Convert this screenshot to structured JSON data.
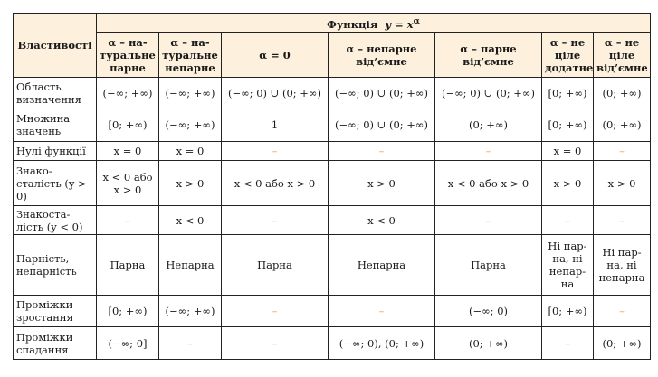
{
  "header": {
    "properties": "Властивості",
    "function": "Функція  y = x^α",
    "columns": [
      "α – на-туральне парне",
      "α – на-туральне непарне",
      "α = 0",
      "α – непарне від’ємне",
      "α – парне від’ємне",
      "α – не ціле додатне",
      "α – не ціле від’ємне"
    ]
  },
  "rows": [
    {
      "property": "Область визначення",
      "values": [
        "(−∞; +∞)",
        "(−∞; +∞)",
        "(−∞; 0) ∪ (0; +∞)",
        "(−∞; 0) ∪ (0; +∞)",
        "(−∞; 0) ∪ (0; +∞)",
        "[0; +∞)",
        "(0; +∞)"
      ]
    },
    {
      "property": "Множина значень",
      "values": [
        "[0; +∞)",
        "(−∞; +∞)",
        "1",
        "(−∞; 0) ∪ (0; +∞)",
        "(0; +∞)",
        "[0; +∞)",
        "(0; +∞)"
      ]
    },
    {
      "property": "Нулі функції",
      "values": [
        "x = 0",
        "x = 0",
        "–",
        "–",
        "–",
        "x = 0",
        "–"
      ]
    },
    {
      "property": "Знако-сталість (y > 0)",
      "values": [
        "x < 0 або x > 0",
        "x > 0",
        "x < 0 або x > 0",
        "x > 0",
        "x < 0 або x > 0",
        "x > 0",
        "x > 0"
      ]
    },
    {
      "property": "Знакоста-лість (y < 0)",
      "values": [
        "–",
        "x < 0",
        "–",
        "x < 0",
        "–",
        "–",
        "–"
      ]
    },
    {
      "property": "Парність, непарність",
      "values": [
        "Парна",
        "Непарна",
        "Парна",
        "Непарна",
        "Парна",
        "Ні пар-на, ні непар-на",
        "Ні пар-на, ні непарна"
      ]
    },
    {
      "property": "Проміжки зростання",
      "values": [
        "[0; +∞)",
        "(−∞; +∞)",
        "–",
        "–",
        "(−∞; 0)",
        "[0; +∞)",
        "–"
      ]
    },
    {
      "property": "Проміжки спадання",
      "values": [
        "(−∞; 0]",
        "–",
        "–",
        "(−∞; 0), (0; +∞)",
        "(0; +∞)",
        "–",
        "(0; +∞)"
      ]
    }
  ],
  "colors": {
    "header_bg": "#fdf0dc",
    "dash": "#e8a23a",
    "border": "#222222"
  }
}
